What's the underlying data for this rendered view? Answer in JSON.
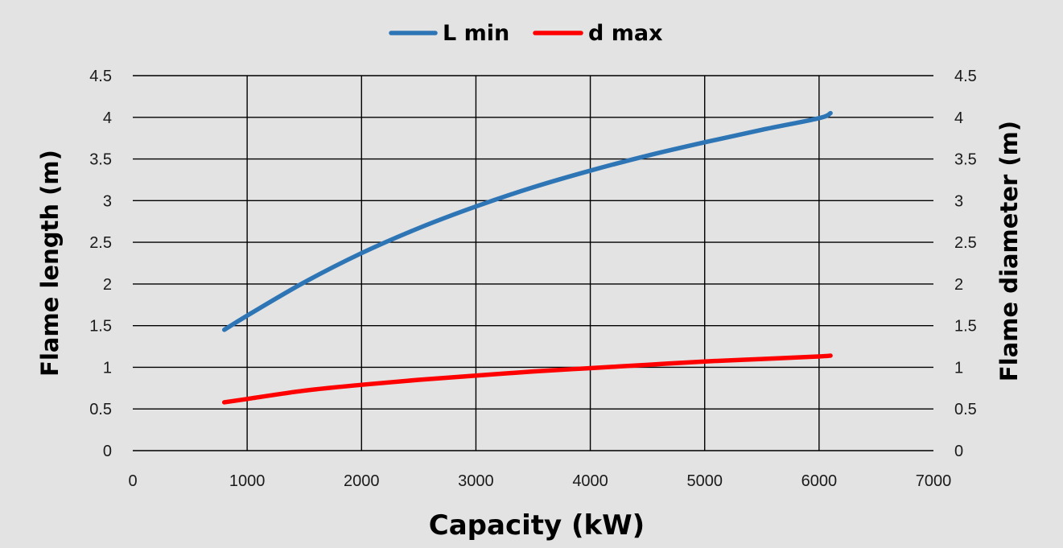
{
  "chart_data": {
    "type": "line",
    "xlabel": "Capacity (kW)",
    "ylabel": "Flame length (m)",
    "ylabel_right": "Flame diameter (m)",
    "xlim": [
      0,
      7000
    ],
    "ylim": [
      0,
      4.5
    ],
    "ylim_right": [
      0,
      4.5
    ],
    "xticks": [
      "0",
      "1000",
      "2000",
      "3000",
      "4000",
      "5000",
      "6000",
      "7000"
    ],
    "yticks": [
      "0",
      "0.5",
      "1",
      "1.5",
      "2",
      "2.5",
      "3",
      "3.5",
      "4",
      "4.5"
    ],
    "yticks_right": [
      "0",
      "0.5",
      "1",
      "1.5",
      "2",
      "2.5",
      "3",
      "3.5",
      "4",
      "4.5"
    ],
    "grid": true,
    "legend_position": "top-center",
    "series": [
      {
        "name": "L min",
        "color": "#2e75b6",
        "axis": "left",
        "x": [
          800,
          1000,
          1500,
          2000,
          2500,
          3000,
          3500,
          4000,
          4500,
          5000,
          5500,
          6000,
          6100
        ],
        "y": [
          1.45,
          1.62,
          2.02,
          2.37,
          2.67,
          2.93,
          3.16,
          3.36,
          3.54,
          3.7,
          3.85,
          3.99,
          4.05
        ]
      },
      {
        "name": "d max",
        "color": "#ff0000",
        "axis": "right",
        "x": [
          800,
          1000,
          1500,
          2000,
          2500,
          3000,
          3500,
          4000,
          4500,
          5000,
          5500,
          6000,
          6100
        ],
        "y": [
          0.58,
          0.62,
          0.72,
          0.79,
          0.85,
          0.9,
          0.95,
          0.99,
          1.03,
          1.07,
          1.1,
          1.13,
          1.14
        ]
      }
    ]
  }
}
